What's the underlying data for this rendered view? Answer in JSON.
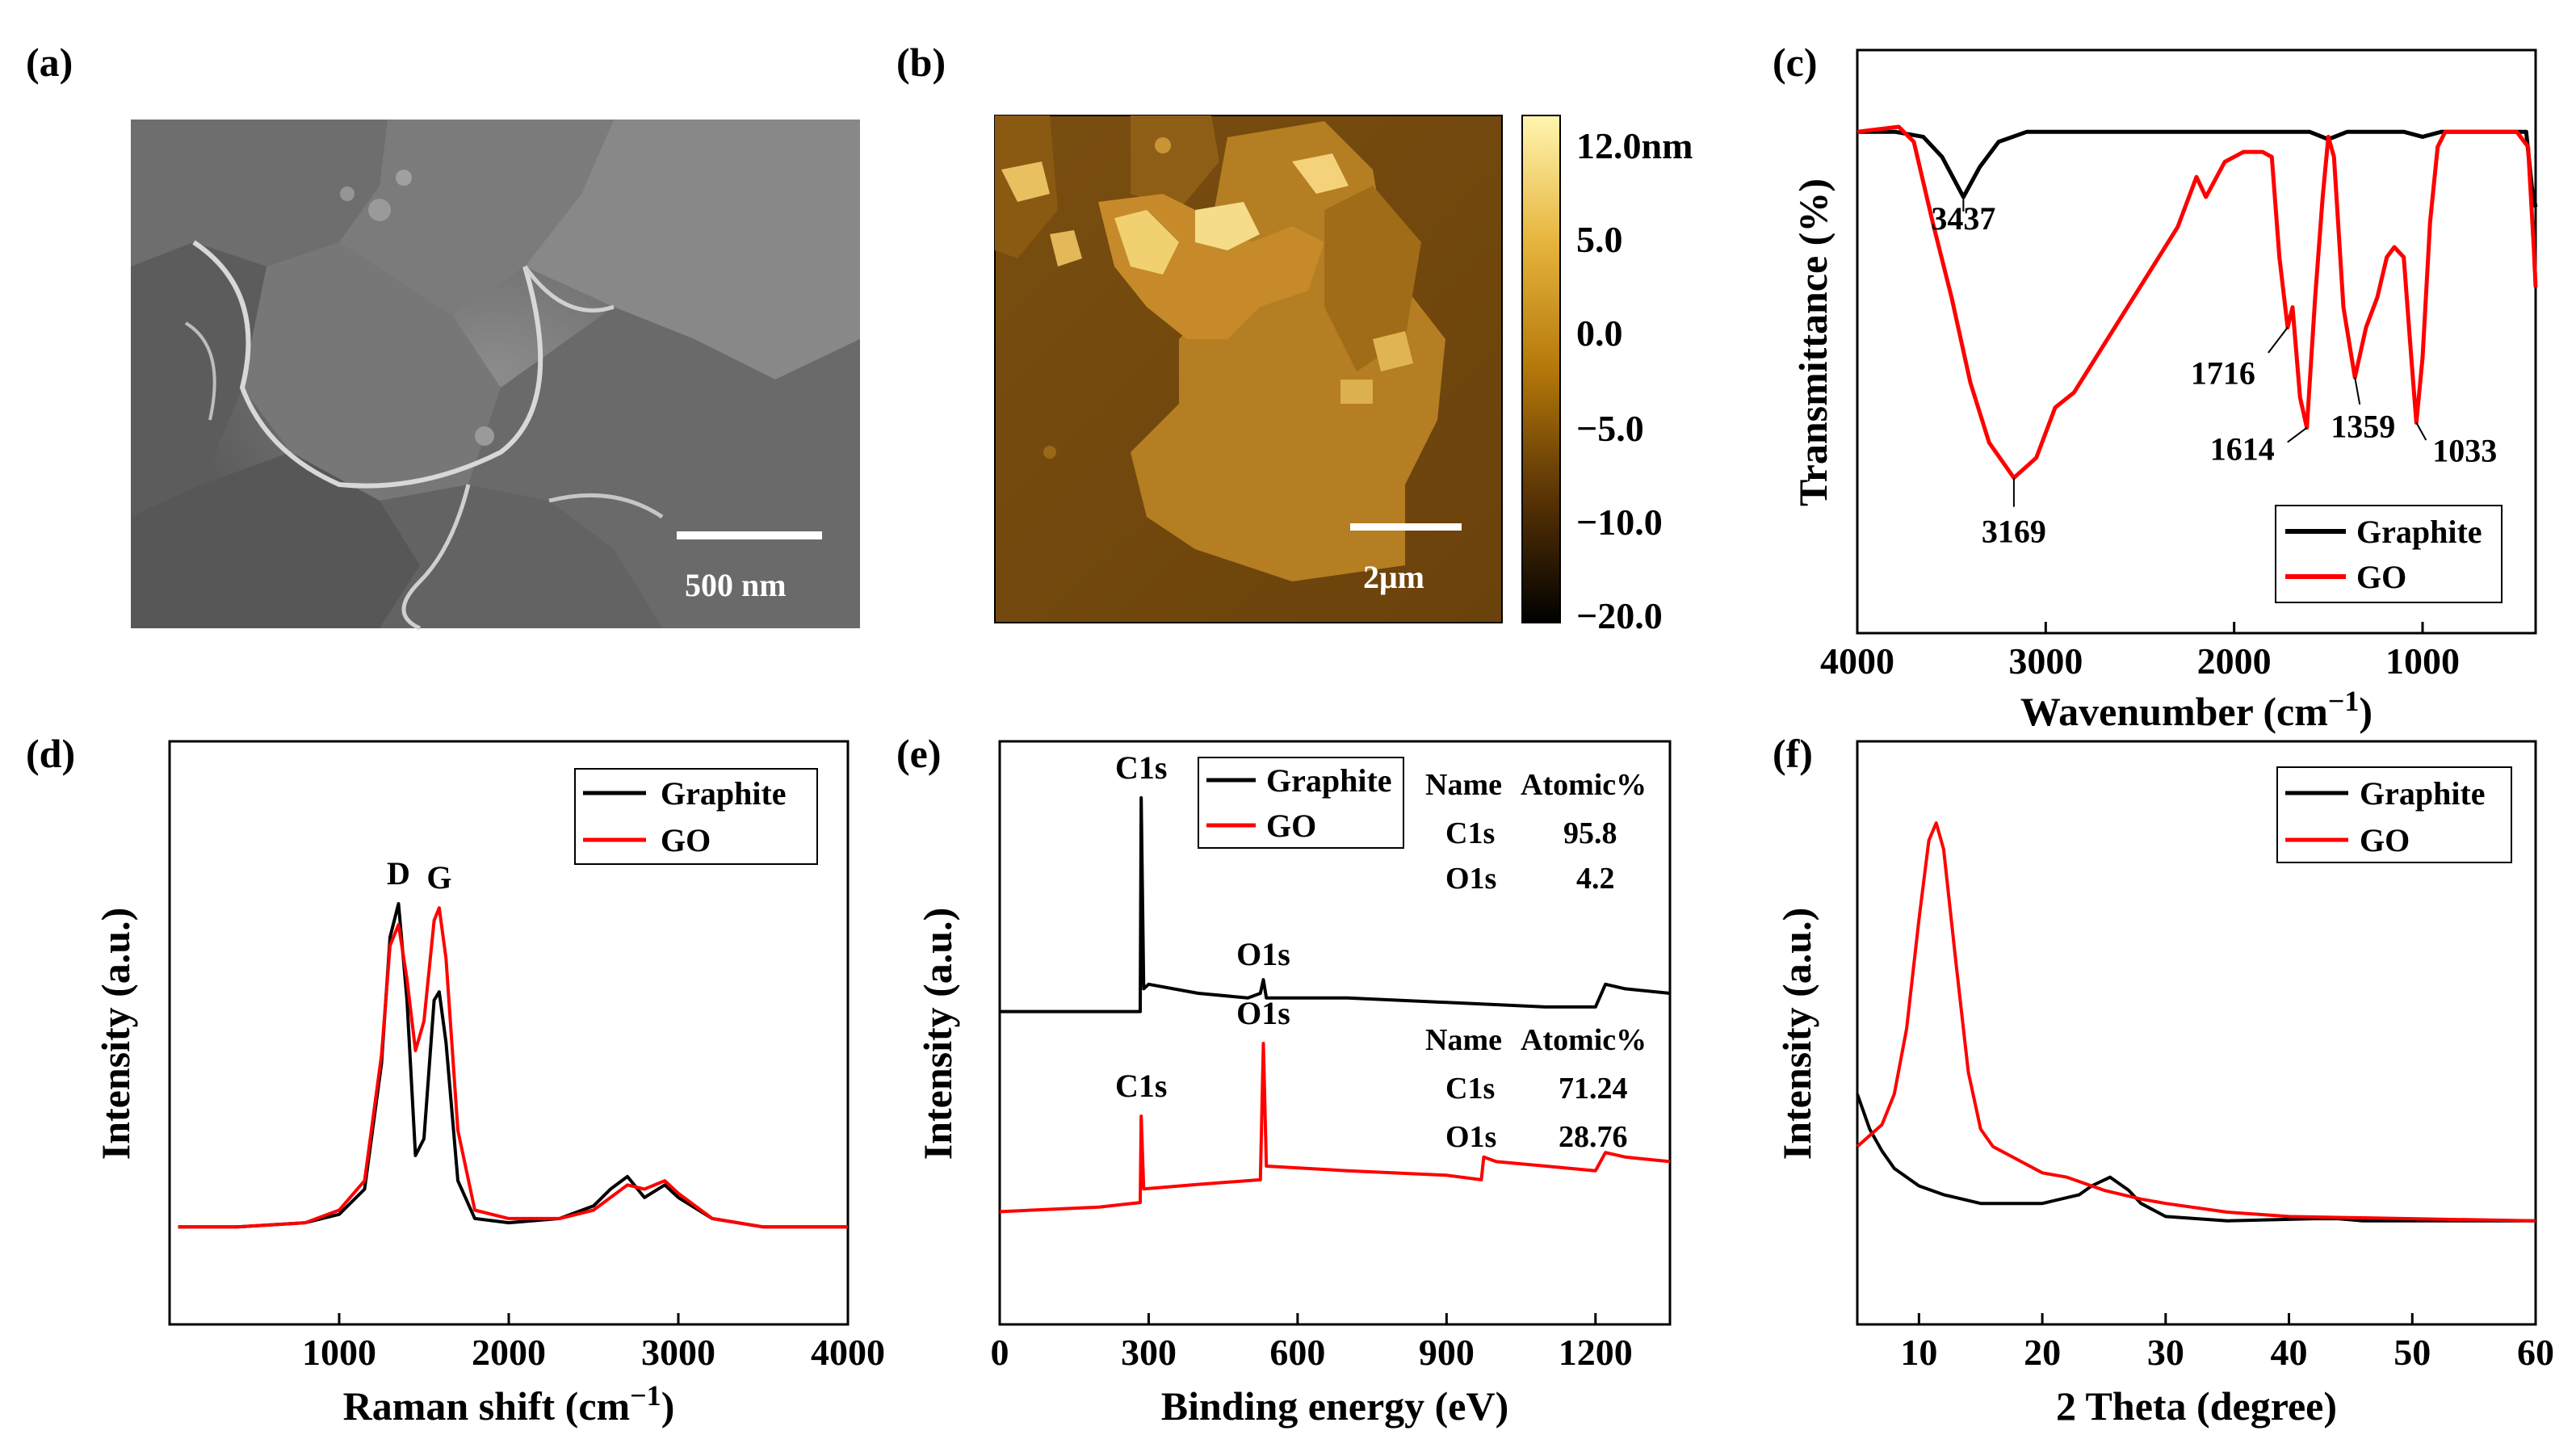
{
  "panels": {
    "a": {
      "label": "(a)",
      "scale_bar": "500 nm"
    },
    "b": {
      "label": "(b)",
      "scale_bar": "2μm",
      "colorbar_ticks": [
        "12.0nm",
        "5.0",
        "0.0",
        "−10.0",
        "−5.0",
        "−20.0"
      ]
    },
    "c": {
      "label": "(c)"
    },
    "d": {
      "label": "(d)"
    },
    "e": {
      "label": "(e)"
    },
    "f": {
      "label": "(f)"
    }
  },
  "chart_data": [
    {
      "panel": "c",
      "type": "line",
      "xlabel": "Wavenumber (cm",
      "xlabel_sup": "−1",
      "xlabel_close": ")",
      "ylabel": "Transmittance (%)",
      "xlim": [
        4000,
        400
      ],
      "xticks": [
        4000,
        3000,
        2000,
        1000
      ],
      "ylim": [
        0,
        100
      ],
      "legend": "bottom-right",
      "series": [
        {
          "name": "Graphite",
          "color": "#000000",
          "points": [
            [
              4000,
              93
            ],
            [
              3800,
              93
            ],
            [
              3650,
              92
            ],
            [
              3550,
              88
            ],
            [
              3437,
              80
            ],
            [
              3350,
              86
            ],
            [
              3250,
              91
            ],
            [
              3100,
              93
            ],
            [
              2000,
              93
            ],
            [
              1600,
              93
            ],
            [
              1500,
              91.5
            ],
            [
              1400,
              93
            ],
            [
              1100,
              93
            ],
            [
              1000,
              92
            ],
            [
              900,
              93
            ],
            [
              600,
              93
            ],
            [
              450,
              93
            ],
            [
              420,
              82
            ],
            [
              400,
              78
            ]
          ]
        },
        {
          "name": "GO",
          "color": "#ff0000",
          "points": [
            [
              4000,
              93
            ],
            [
              3780,
              94
            ],
            [
              3700,
              91
            ],
            [
              3600,
              75
            ],
            [
              3500,
              60
            ],
            [
              3400,
              43
            ],
            [
              3300,
              31
            ],
            [
              3169,
              24
            ],
            [
              3050,
              28
            ],
            [
              2950,
              38
            ],
            [
              2850,
              41
            ],
            [
              2700,
              50
            ],
            [
              2500,
              62
            ],
            [
              2300,
              74
            ],
            [
              2200,
              84
            ],
            [
              2150,
              80
            ],
            [
              2050,
              87
            ],
            [
              1950,
              89
            ],
            [
              1850,
              89
            ],
            [
              1800,
              88
            ],
            [
              1760,
              68
            ],
            [
              1716,
              54
            ],
            [
              1690,
              58
            ],
            [
              1650,
              40
            ],
            [
              1614,
              34
            ],
            [
              1570,
              60
            ],
            [
              1530,
              80
            ],
            [
              1500,
              92
            ],
            [
              1470,
              88
            ],
            [
              1420,
              58
            ],
            [
              1359,
              44
            ],
            [
              1300,
              54
            ],
            [
              1240,
              60
            ],
            [
              1190,
              68
            ],
            [
              1150,
              70
            ],
            [
              1100,
              68
            ],
            [
              1060,
              48
            ],
            [
              1033,
              35
            ],
            [
              1000,
              48
            ],
            [
              960,
              75
            ],
            [
              920,
              90
            ],
            [
              880,
              93
            ],
            [
              700,
              93
            ],
            [
              500,
              93
            ],
            [
              440,
              90
            ],
            [
              410,
              70
            ],
            [
              400,
              62
            ]
          ]
        }
      ],
      "annotations": [
        {
          "text": "3437",
          "x": 3437,
          "y": 80
        },
        {
          "text": "3169",
          "x": 3169,
          "y": 24
        },
        {
          "text": "1716",
          "x": 1716,
          "y": 54
        },
        {
          "text": "1614",
          "x": 1614,
          "y": 34
        },
        {
          "text": "1359",
          "x": 1359,
          "y": 44
        },
        {
          "text": "1033",
          "x": 1033,
          "y": 35
        }
      ]
    },
    {
      "panel": "d",
      "type": "line",
      "xlabel": "Raman shift (cm",
      "xlabel_sup": "−1",
      "xlabel_close": ")",
      "ylabel": "Intensity (a.u.)",
      "xlim": [
        0,
        4000
      ],
      "xticks": [
        1000,
        2000,
        3000,
        4000
      ],
      "ylim": [
        0,
        100
      ],
      "legend": "top-right",
      "series": [
        {
          "name": "Graphite",
          "color": "#000000",
          "points": [
            [
              50,
              1
            ],
            [
              400,
              1
            ],
            [
              800,
              2
            ],
            [
              1000,
              4
            ],
            [
              1150,
              10
            ],
            [
              1250,
              40
            ],
            [
              1300,
              70
            ],
            [
              1350,
              78
            ],
            [
              1400,
              55
            ],
            [
              1450,
              18
            ],
            [
              1500,
              22
            ],
            [
              1560,
              55
            ],
            [
              1590,
              57
            ],
            [
              1630,
              45
            ],
            [
              1700,
              12
            ],
            [
              1800,
              3
            ],
            [
              2000,
              2
            ],
            [
              2300,
              3
            ],
            [
              2500,
              6
            ],
            [
              2600,
              10
            ],
            [
              2700,
              13
            ],
            [
              2800,
              8
            ],
            [
              2920,
              11
            ],
            [
              3000,
              8
            ],
            [
              3200,
              3
            ],
            [
              3500,
              1
            ],
            [
              4000,
              1
            ]
          ]
        },
        {
          "name": "GO",
          "color": "#ff0000",
          "points": [
            [
              50,
              1
            ],
            [
              400,
              1
            ],
            [
              800,
              2
            ],
            [
              1000,
              5
            ],
            [
              1150,
              12
            ],
            [
              1250,
              42
            ],
            [
              1300,
              68
            ],
            [
              1350,
              73
            ],
            [
              1400,
              60
            ],
            [
              1450,
              43
            ],
            [
              1500,
              50
            ],
            [
              1560,
              74
            ],
            [
              1590,
              77
            ],
            [
              1630,
              65
            ],
            [
              1700,
              24
            ],
            [
              1800,
              5
            ],
            [
              2000,
              3
            ],
            [
              2300,
              3
            ],
            [
              2500,
              5
            ],
            [
              2600,
              8
            ],
            [
              2700,
              11
            ],
            [
              2800,
              10
            ],
            [
              2920,
              12
            ],
            [
              3000,
              9
            ],
            [
              3200,
              3
            ],
            [
              3500,
              1
            ],
            [
              4000,
              1
            ]
          ]
        }
      ],
      "annotations": [
        {
          "text": "D",
          "x": 1350,
          "y": 78
        },
        {
          "text": "G",
          "x": 1590,
          "y": 77
        }
      ]
    },
    {
      "panel": "e",
      "type": "line",
      "xlabel": "Binding energy (eV)",
      "ylabel": "Intensity (a.u.)",
      "xlim": [
        0,
        1350
      ],
      "xticks": [
        0,
        300,
        600,
        900,
        1200
      ],
      "ylim": [
        0,
        100
      ],
      "legend": "top-center",
      "series": [
        {
          "name": "Graphite",
          "color": "#000000",
          "points": [
            [
              0,
              47
            ],
            [
              283,
              47
            ],
            [
              285,
              94
            ],
            [
              290,
              52
            ],
            [
              300,
              53
            ],
            [
              400,
              51
            ],
            [
              500,
              50
            ],
            [
              525,
              51
            ],
            [
              531,
              54
            ],
            [
              537,
              50
            ],
            [
              700,
              50
            ],
            [
              900,
              49
            ],
            [
              1100,
              48
            ],
            [
              1200,
              48
            ],
            [
              1220,
              53
            ],
            [
              1260,
              52
            ],
            [
              1350,
              51
            ]
          ]
        },
        {
          "name": "GO",
          "color": "#ff0000",
          "points": [
            [
              0,
              3
            ],
            [
              200,
              4
            ],
            [
              283,
              5
            ],
            [
              285,
              24
            ],
            [
              290,
              8
            ],
            [
              400,
              9
            ],
            [
              525,
              10
            ],
            [
              531,
              40
            ],
            [
              537,
              13
            ],
            [
              700,
              12
            ],
            [
              900,
              11
            ],
            [
              970,
              10
            ],
            [
              975,
              15
            ],
            [
              1000,
              14
            ],
            [
              1100,
              13
            ],
            [
              1200,
              12
            ],
            [
              1220,
              16
            ],
            [
              1260,
              15
            ],
            [
              1350,
              14
            ]
          ]
        }
      ],
      "annotations": [
        {
          "text": "C1s",
          "x": 285,
          "y": 94
        },
        {
          "text": "O1s",
          "x": 531,
          "y": 54
        },
        {
          "text": "O1s",
          "x": 531,
          "y": 40
        },
        {
          "text": "C1s",
          "x": 285,
          "y": 24
        }
      ],
      "tables": [
        {
          "headers": [
            "Name",
            "Atomic%"
          ],
          "rows": [
            [
              "C1s",
              "95.8"
            ],
            [
              "O1s",
              "4.2"
            ]
          ]
        },
        {
          "headers": [
            "Name",
            "Atomic%"
          ],
          "rows": [
            [
              "C1s",
              "71.24"
            ],
            [
              "O1s",
              "28.76"
            ]
          ]
        }
      ]
    },
    {
      "panel": "f",
      "type": "line",
      "xlabel": "2 Theta (degree)",
      "ylabel": "Intensity (a.u.)",
      "xlim": [
        5,
        60
      ],
      "xticks": [
        10,
        20,
        30,
        40,
        50,
        60
      ],
      "ylim": [
        0,
        100
      ],
      "legend": "top-right",
      "series": [
        {
          "name": "Graphite",
          "color": "#000000",
          "points": [
            [
              5,
              30
            ],
            [
              6,
              22
            ],
            [
              7,
              17
            ],
            [
              8,
              13
            ],
            [
              10,
              9
            ],
            [
              12,
              7
            ],
            [
              15,
              5
            ],
            [
              20,
              5
            ],
            [
              23,
              7
            ],
            [
              24,
              9
            ],
            [
              25.5,
              11
            ],
            [
              27,
              8
            ],
            [
              28,
              5
            ],
            [
              30,
              2
            ],
            [
              35,
              1
            ],
            [
              42,
              1.5
            ],
            [
              44,
              1.5
            ],
            [
              46,
              1
            ],
            [
              60,
              1
            ]
          ]
        },
        {
          "name": "GO",
          "color": "#ff0000",
          "points": [
            [
              5,
              18
            ],
            [
              7,
              23
            ],
            [
              8,
              30
            ],
            [
              9,
              45
            ],
            [
              10,
              70
            ],
            [
              10.8,
              88
            ],
            [
              11.4,
              92
            ],
            [
              12,
              86
            ],
            [
              13,
              60
            ],
            [
              14,
              35
            ],
            [
              15,
              22
            ],
            [
              16,
              18
            ],
            [
              18,
              15
            ],
            [
              20,
              12
            ],
            [
              22,
              11
            ],
            [
              25,
              8
            ],
            [
              28,
              6
            ],
            [
              30,
              5
            ],
            [
              35,
              3
            ],
            [
              40,
              2
            ],
            [
              50,
              1.5
            ],
            [
              60,
              1
            ]
          ]
        }
      ]
    }
  ]
}
